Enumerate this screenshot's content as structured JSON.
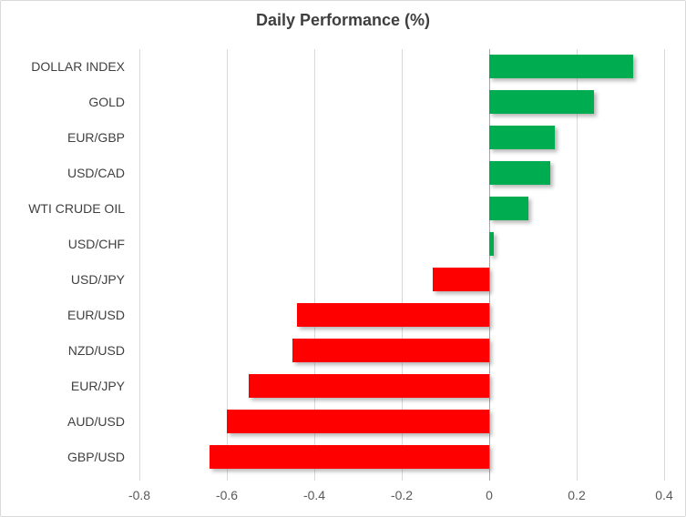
{
  "title": "Daily Performance (%)",
  "colors": {
    "positive_bar": "#00AC50",
    "negative_bar": "#FF0000",
    "gridline": "#D9D9D9",
    "zero_axis": "#A6A6A6",
    "title_text": "#3F3F3F",
    "category_text": "#404040",
    "tick_text": "#595959",
    "chart_border": "#D9D9D9"
  },
  "chart_data": {
    "type": "bar",
    "orientation": "horizontal",
    "title": "Daily Performance (%)",
    "categories": [
      "DOLLAR INDEX",
      "GOLD",
      "EUR/GBP",
      "USD/CAD",
      "WTI CRUDE OIL",
      "USD/CHF",
      "USD/JPY",
      "EUR/USD",
      "NZD/USD",
      "EUR/JPY",
      "AUD/USD",
      "GBP/USD"
    ],
    "values": [
      0.33,
      0.24,
      0.15,
      0.14,
      0.09,
      0.01,
      -0.13,
      -0.44,
      -0.45,
      -0.55,
      -0.6,
      -0.64
    ],
    "xlabel": "",
    "ylabel": "",
    "xlim": [
      -0.8,
      0.4
    ],
    "xticks": [
      -0.8,
      -0.6,
      -0.4,
      -0.2,
      0,
      0.2,
      0.4
    ],
    "xtick_labels": [
      "-0.8",
      "-0.6",
      "-0.4",
      "-0.2",
      "0",
      "0.2",
      "0.4"
    ],
    "grid": "vertical-only",
    "legend": "none",
    "bar_color_positive": "#00AC50",
    "bar_color_negative": "#FF0000"
  }
}
